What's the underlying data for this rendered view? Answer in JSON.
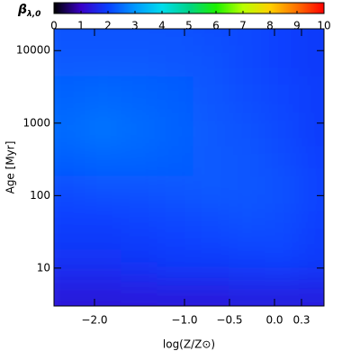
{
  "chart_data": {
    "type": "heatmap",
    "colorbar_label": "β",
    "colorbar_label_sub": "λ,0",
    "zlim": [
      0,
      10
    ],
    "zticks": [
      0,
      1,
      2,
      3,
      4,
      5,
      6,
      7,
      8,
      9,
      10
    ],
    "colormap": [
      "#000000",
      "#3a00c8",
      "#0a40ff",
      "#0098ff",
      "#00dcec",
      "#00d488",
      "#1cf000",
      "#b8ff00",
      "#ffd000",
      "#ff7000",
      "#ff0000"
    ],
    "x_label": "log(Z/Z⊙)",
    "y_label": "Age [Myr]",
    "xlim": [
      -2.45,
      0.55
    ],
    "ylim": [
      3,
      20000
    ],
    "y_log": true,
    "xticks": [
      {
        "value": -2.0,
        "label": "−2.0"
      },
      {
        "value": -1.0,
        "label": "−1.0"
      },
      {
        "value": -0.5,
        "label": "−0.5"
      },
      {
        "value": 0.0,
        "label": "0.0"
      },
      0.3
    ],
    "yticks": [
      10,
      100,
      1000,
      10000
    ],
    "x": [
      -2.3,
      -1.9,
      -1.5,
      -1.1,
      -0.7,
      -0.3,
      0.1,
      0.45
    ],
    "y": [
      4,
      7,
      12,
      25,
      50,
      120,
      300,
      800,
      2500,
      8000,
      18000
    ],
    "z": [
      [
        1.3,
        1.3,
        1.35,
        1.35,
        1.35,
        1.4,
        1.4,
        1.4
      ],
      [
        1.6,
        1.6,
        1.65,
        1.7,
        1.7,
        1.75,
        1.75,
        1.7
      ],
      [
        1.8,
        1.8,
        1.85,
        1.9,
        1.9,
        1.95,
        2.0,
        1.9
      ],
      [
        1.9,
        1.9,
        1.95,
        2.0,
        2.05,
        2.1,
        2.1,
        1.95
      ],
      [
        2.0,
        2.0,
        2.05,
        2.1,
        2.15,
        2.2,
        2.15,
        2.0
      ],
      [
        2.15,
        2.2,
        2.2,
        2.25,
        2.3,
        2.25,
        2.2,
        2.05
      ],
      [
        2.35,
        2.4,
        2.4,
        2.35,
        2.3,
        2.25,
        2.15,
        2.0
      ],
      [
        2.5,
        2.6,
        2.5,
        2.4,
        2.3,
        2.2,
        2.1,
        1.95
      ],
      [
        2.4,
        2.45,
        2.4,
        2.35,
        2.25,
        2.15,
        2.05,
        1.95
      ],
      [
        2.3,
        2.3,
        2.3,
        2.25,
        2.2,
        2.1,
        2.0,
        1.9
      ],
      [
        2.2,
        2.2,
        2.2,
        2.2,
        2.15,
        2.1,
        2.0,
        1.9
      ]
    ]
  }
}
